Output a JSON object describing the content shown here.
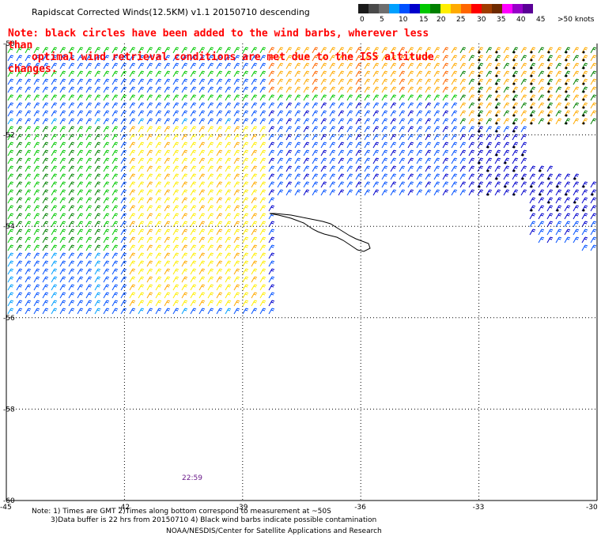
{
  "header": {
    "title": "Rapidscat Corrected Winds(12.5KM) v1.1 20150710 descending",
    "note_line1": "Note: black circles have been added to the wind barbs, wherever less than",
    "note_line2": "optimal wind retrieval conditions are met due to the ISS altitude changes."
  },
  "legend": {
    "colors": [
      "#1a1a1a",
      "#4a4a4a",
      "#6e6e6e",
      "#00a0ff",
      "#0050ff",
      "#0000cc",
      "#00c800",
      "#008000",
      "#ffee00",
      "#ffaa00",
      "#ff6600",
      "#ff0000",
      "#a03c00",
      "#6e2a00",
      "#ff00ff",
      "#9600c8",
      "#5a0096"
    ],
    "labels": [
      "0",
      "5",
      "10",
      "15",
      "20",
      "25",
      "30",
      "35",
      "40",
      "45",
      ">50 knots"
    ]
  },
  "map": {
    "lat_labels": [
      "-50",
      "-52",
      "-54",
      "-56",
      "-58",
      "-60"
    ],
    "lon_labels": [
      "-45",
      "-42",
      "-39",
      "-36",
      "-33",
      "-30"
    ],
    "lat_range": [
      -60,
      -50
    ],
    "lon_range": [
      -45,
      -30
    ],
    "time_label": "22:59",
    "land": "South Georgia island (outline)"
  },
  "footer": {
    "note_line1": "Note: 1) Times are GMT 2)Times along bottom correspond to measurement at ~50S",
    "note_line2": "3)Data buffer is 22 hrs from 20150710 4) Black wind barbs indicate possible contamination",
    "credit": "NOAA/NESDIS/Center for Satellite Applications and Research"
  }
}
